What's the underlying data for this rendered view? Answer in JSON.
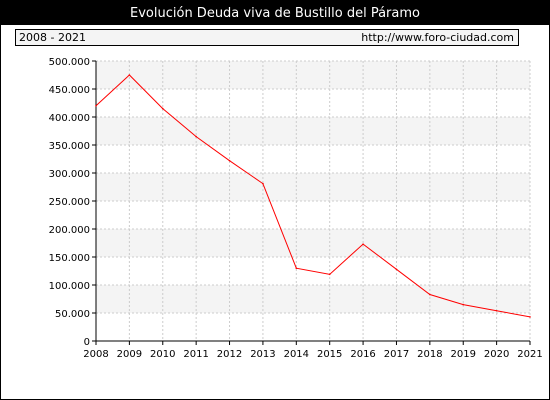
{
  "header": {
    "title": "Evolución Deuda viva de Bustillo del Páramo",
    "period": "2008 - 2021",
    "source": "http://www.foro-ciudad.com"
  },
  "chart_data": {
    "type": "line",
    "title": "Evolución Deuda viva de Bustillo del Páramo",
    "xlabel": "",
    "ylabel": "",
    "x": [
      2008,
      2009,
      2010,
      2011,
      2012,
      2013,
      2014,
      2015,
      2016,
      2017,
      2018,
      2019,
      2020,
      2021
    ],
    "series": [
      {
        "values": [
          420000,
          475000,
          415000,
          365000,
          322000,
          281000,
          130000,
          119000,
          173000,
          128000,
          83000,
          65000,
          54000,
          43000
        ],
        "color": "#ff0000"
      }
    ],
    "ylim": [
      0,
      500000
    ],
    "yticks": [
      0,
      50000,
      100000,
      150000,
      200000,
      250000,
      300000,
      350000,
      400000,
      450000,
      500000
    ],
    "ytick_labels": [
      "0",
      "50.000",
      "100.000",
      "150.000",
      "200.000",
      "250.000",
      "300.000",
      "350.000",
      "400.000",
      "450.000",
      "500.000"
    ],
    "xtick_labels": [
      "2008",
      "2009",
      "2010",
      "2011",
      "2012",
      "2013",
      "2014",
      "2015",
      "2016",
      "2017",
      "2018",
      "2019",
      "2020",
      "2021"
    ],
    "grid": true,
    "band_colors": [
      "#f4f4f4",
      "#ffffff"
    ],
    "grid_color": "#cccccc"
  }
}
